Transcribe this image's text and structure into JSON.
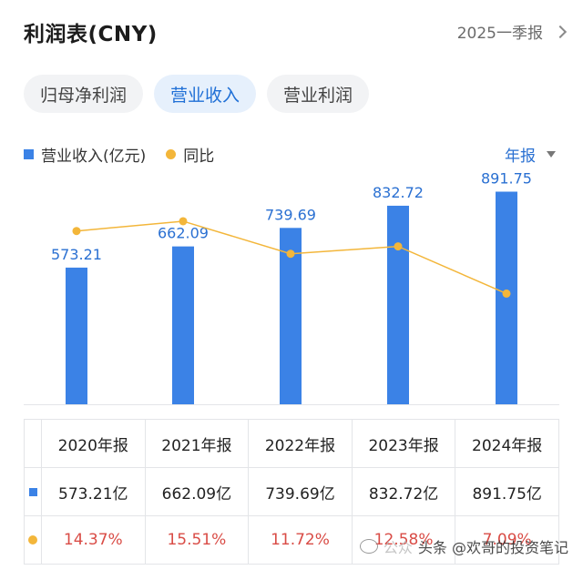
{
  "header": {
    "title": "利润表(CNY)",
    "period": "2025一季报"
  },
  "tabs": [
    {
      "label": "归母净利润",
      "active": false
    },
    {
      "label": "营业收入",
      "active": true
    },
    {
      "label": "营业利润",
      "active": false
    }
  ],
  "legend": {
    "bar_label": "营业收入(亿元)",
    "line_label": "同比"
  },
  "annual_selector": {
    "label": "年报"
  },
  "colors": {
    "bar": "#3b82e6",
    "line": "#f3b63a",
    "label": "#2a70d2",
    "pct": "#d94c46"
  },
  "chart_data": {
    "type": "bar",
    "categories": [
      "2020年报",
      "2021年报",
      "2022年报",
      "2023年报",
      "2024年报"
    ],
    "series": [
      {
        "name": "营业收入(亿元)",
        "type": "bar",
        "values": [
          573.21,
          662.09,
          739.69,
          832.72,
          891.75
        ],
        "labels": [
          "573.21",
          "662.09",
          "739.69",
          "832.72",
          "891.75"
        ]
      },
      {
        "name": "同比",
        "type": "line",
        "values": [
          14.37,
          15.51,
          11.72,
          12.58,
          7.09
        ]
      }
    ],
    "ylim_bar": [
      0,
      970
    ],
    "ylim_line": [
      0,
      20
    ],
    "grid": false,
    "legend": "top-left"
  },
  "table": {
    "years": [
      "2020年报",
      "2021年报",
      "2022年报",
      "2023年报",
      "2024年报"
    ],
    "revenue": [
      "573.21亿",
      "662.09亿",
      "739.69亿",
      "832.72亿",
      "891.75亿"
    ],
    "yoy": [
      "14.37%",
      "15.51%",
      "11.72%",
      "12.58%",
      "7.09%"
    ]
  },
  "watermark": {
    "faint_text": "公众",
    "text": "头条 @欢哥的投资笔记"
  }
}
